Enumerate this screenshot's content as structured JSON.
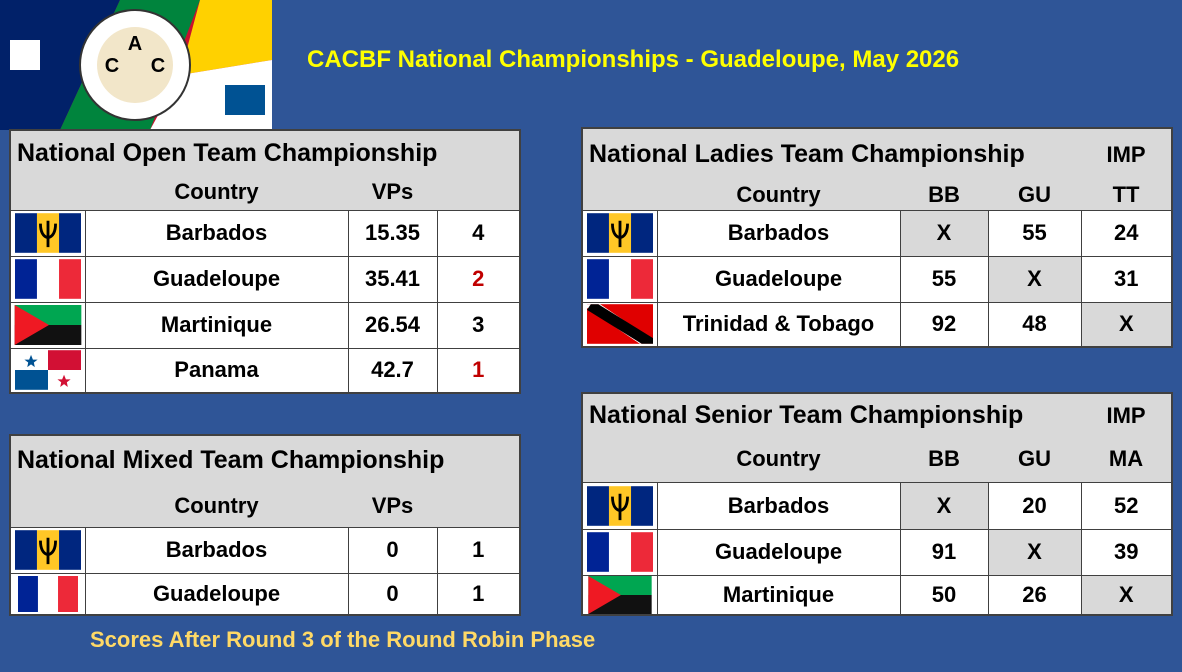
{
  "header": {
    "title": "CACBF National Championships - Guadeloupe, May 2026",
    "logo": [
      "C",
      "A",
      "C"
    ]
  },
  "open": {
    "title": "National Open Team Championship",
    "columns": [
      "Country",
      "VPs"
    ],
    "rows": [
      [
        "Barbados",
        15.35,
        4
      ],
      [
        "Guadeloupe",
        35.41,
        2
      ],
      [
        "Martinique",
        26.54,
        3
      ],
      [
        "Panama",
        42.7,
        1
      ]
    ]
  },
  "mixed": {
    "title": "National Mixed Team Championship",
    "columns": [
      "Country",
      "VPs"
    ],
    "rows": [
      [
        "Barbados",
        0,
        1
      ],
      [
        "Guadeloupe",
        0,
        1
      ]
    ]
  },
  "ladies": {
    "title": "National Ladies Team Championship",
    "columns": [
      "Country",
      "BB",
      "GU",
      "IMP",
      "TT"
    ],
    "rows": [
      [
        "Barbados",
        "X",
        55,
        24
      ],
      [
        "Guadeloupe",
        55,
        "X",
        31
      ],
      [
        "Trinidad & Tobago",
        92,
        48,
        "X"
      ]
    ]
  },
  "senior": {
    "title": "National Senior Team Championship",
    "columns": [
      "Country",
      "BB",
      "GU",
      "IMP",
      "MA"
    ],
    "rows": [
      [
        "Barbados",
        "X",
        20,
        52
      ],
      [
        "Guadeloupe",
        91,
        "X",
        39
      ],
      [
        "Martinique",
        50,
        26,
        "X"
      ]
    ]
  },
  "footer": "Scores After Round 3 of the Round Robin Phase"
}
